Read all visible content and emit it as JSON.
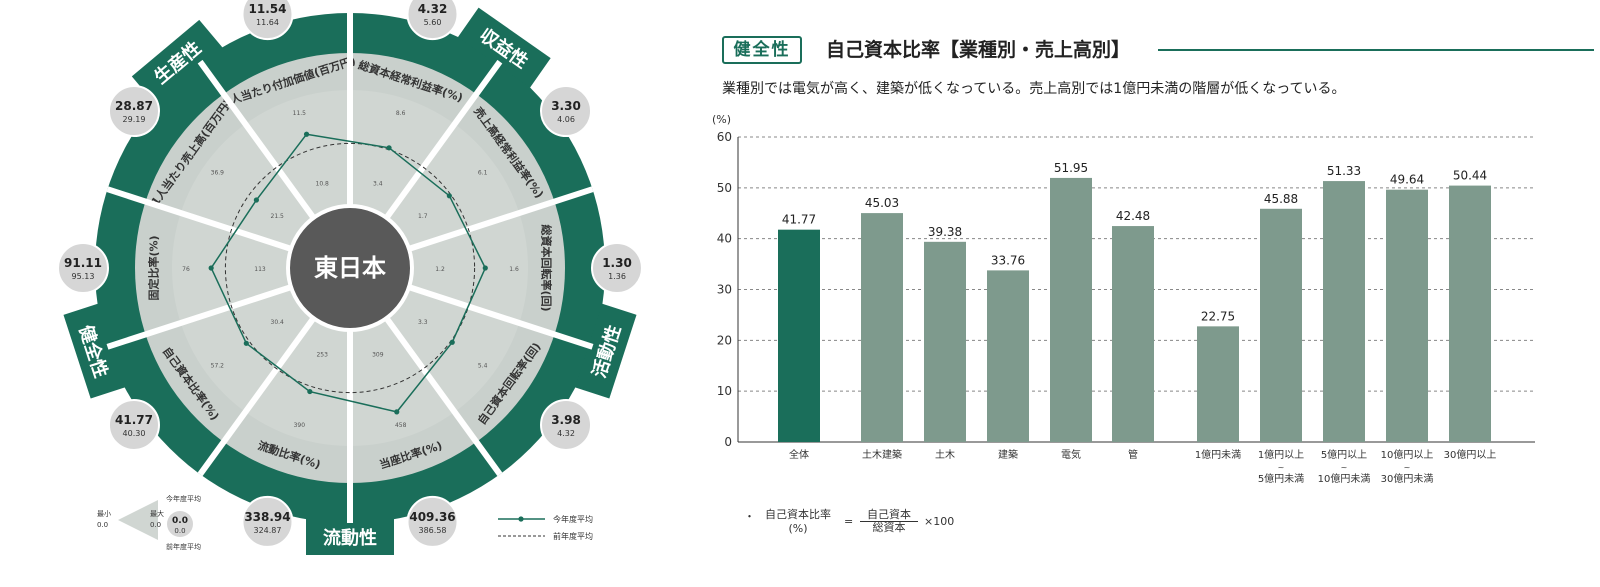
{
  "radar": {
    "center_label": "東日本",
    "groups": [
      {
        "label": "生産性"
      },
      {
        "label": "収益性"
      },
      {
        "label": "活動性"
      },
      {
        "label": "流動性"
      },
      {
        "label": "健全性"
      }
    ],
    "axes": [
      {
        "label": "1人当たり付加価値(百万円)",
        "current": "11.54",
        "previous": "11.64",
        "inner_tick": "10.8",
        "outer_tick": "11.5"
      },
      {
        "label": "総資本経常利益率(%)",
        "current": "4.32",
        "previous": "5.60",
        "inner_tick": "3.4",
        "outer_tick": "8.6"
      },
      {
        "label": "売上高経常利益率(%)",
        "current": "3.30",
        "previous": "4.06",
        "inner_tick": "1.7",
        "outer_tick": "6.1"
      },
      {
        "label": "総資本回転率(回)",
        "current": "1.30",
        "previous": "1.36",
        "inner_tick": "1.2",
        "outer_tick": "1.6"
      },
      {
        "label": "自己資本回転率(回)",
        "current": "3.98",
        "previous": "4.32",
        "inner_tick": "3.3",
        "outer_tick": "5.4"
      },
      {
        "label": "当座比率(%)",
        "current": "409.36",
        "previous": "386.58",
        "inner_tick": "309",
        "outer_tick": "458"
      },
      {
        "label": "流動比率(%)",
        "current": "338.94",
        "previous": "324.87",
        "inner_tick": "253",
        "outer_tick": "390"
      },
      {
        "label": "自己資本比率(%)",
        "current": "41.77",
        "previous": "40.30",
        "inner_tick": "30.4",
        "outer_tick": "57.2"
      },
      {
        "label": "固定比率(%)",
        "current": "91.11",
        "previous": "95.13",
        "inner_tick": "113",
        "outer_tick": "76"
      },
      {
        "label": "1人当たり売上高(百万円)",
        "current": "28.87",
        "previous": "29.19",
        "inner_tick": "21.5",
        "outer_tick": "36.9"
      }
    ],
    "current_series_r": [
      0.79,
      0.71,
      0.69,
      0.76,
      0.71,
      0.85,
      0.73,
      0.72,
      0.78,
      0.65
    ],
    "previous_r": 0.7,
    "legend": {
      "current": "今年度平均",
      "previous": "前年度平均"
    },
    "mini_legend": {
      "top": "今年度平均",
      "bottom": "前年度平均",
      "left_top": "最小",
      "left_bottom": "0.0",
      "right_top": "最大",
      "right_bottom": "0.0",
      "value_current": "0.0",
      "value_previous": "0.0"
    }
  },
  "header": {
    "tag": "健全性",
    "title": "自己資本比率【業種別・売上高別】",
    "subtitle": "業種別では電気が高く、建築が低くなっている。売上高別では1億円未満の階層が低くなっている。"
  },
  "chart_data": {
    "type": "bar",
    "ylabel": "(%)",
    "ylim": [
      0,
      60
    ],
    "yticks": [
      "0",
      "10",
      "20",
      "30",
      "40",
      "50",
      "60"
    ],
    "grid": true,
    "categories": [
      [
        "全体"
      ],
      [
        "土木建築"
      ],
      [
        "土木"
      ],
      [
        "建築"
      ],
      [
        "電気"
      ],
      [
        "管"
      ],
      [
        "1億円未満"
      ],
      [
        "1億円以上",
        "~",
        "5億円未満"
      ],
      [
        "5億円以上",
        "~",
        "10億円未満"
      ],
      [
        "10億円以上",
        "~",
        "30億円未満"
      ],
      [
        "30億円以上"
      ]
    ],
    "values": [
      41.77,
      45.03,
      39.38,
      33.76,
      51.95,
      42.48,
      22.75,
      45.88,
      51.33,
      49.64,
      50.44
    ],
    "labels": [
      "41.77",
      "45.03",
      "39.38",
      "33.76",
      "51.95",
      "42.48",
      "22.75",
      "45.88",
      "51.33",
      "49.64",
      "50.44"
    ],
    "highlight_index": 0,
    "colors": {
      "highlight": "#1a6e5a",
      "bar": "#7e9a8d"
    }
  },
  "formula": {
    "lhs_1": "自己資本比率",
    "lhs_2": "(%)",
    "eq": "=",
    "numerator": "自己資本",
    "denominator": "総資本",
    "multiplier": "×100"
  },
  "colors": {
    "brand": "#1a6e5a",
    "ring": "#c9d0cc",
    "radar_bg": "#d0d6d2",
    "hub": "#595959"
  }
}
